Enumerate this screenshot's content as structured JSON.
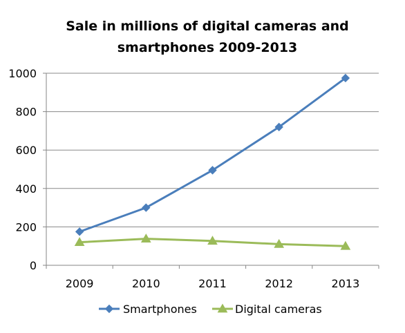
{
  "chart_data": {
    "type": "line",
    "title_lines": [
      "Sale in millions of digital cameras and",
      "smartphones 2009-2013"
    ],
    "xlabel": "",
    "ylabel": "",
    "categories": [
      "2009",
      "2010",
      "2011",
      "2012",
      "2013"
    ],
    "ylim": [
      0,
      1000
    ],
    "yticks": [
      "0",
      "200",
      "400",
      "600",
      "800",
      "1000"
    ],
    "grid": true,
    "legend_position": "bottom",
    "series": [
      {
        "name": "Smartphones",
        "values": [
          175,
          300,
          495,
          720,
          975
        ],
        "color": "#4a7ebb",
        "marker": "diamond"
      },
      {
        "name": "Digital cameras",
        "values": [
          120,
          138,
          127,
          110,
          100
        ],
        "color": "#9bbb59",
        "marker": "triangle"
      }
    ]
  }
}
